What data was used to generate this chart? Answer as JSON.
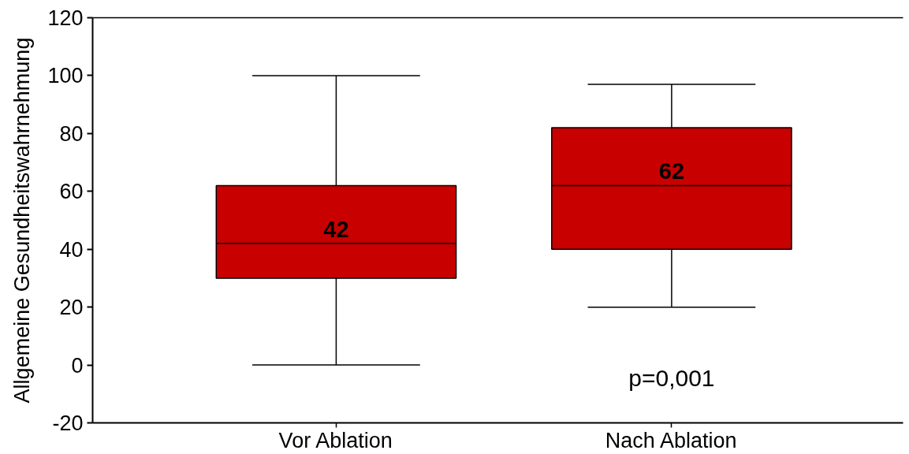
{
  "chart_data": {
    "type": "box",
    "ylabel": "Allgemeine Gesundheitswahrnehmung",
    "categories": [
      "Vor Ablation",
      "Nach Ablation"
    ],
    "boxes": [
      {
        "low": 0,
        "q1": 30,
        "median": 42,
        "q3": 62,
        "high": 100
      },
      {
        "low": 20,
        "q1": 40,
        "median": 62,
        "q3": 82,
        "high": 97
      }
    ],
    "value_labels": [
      "42",
      "62"
    ],
    "color": "#c80000",
    "ylim": [
      -20,
      120
    ],
    "yticks": [
      -20,
      0,
      20,
      40,
      60,
      80,
      100,
      120
    ],
    "annotations": [
      "p=0,001"
    ]
  }
}
